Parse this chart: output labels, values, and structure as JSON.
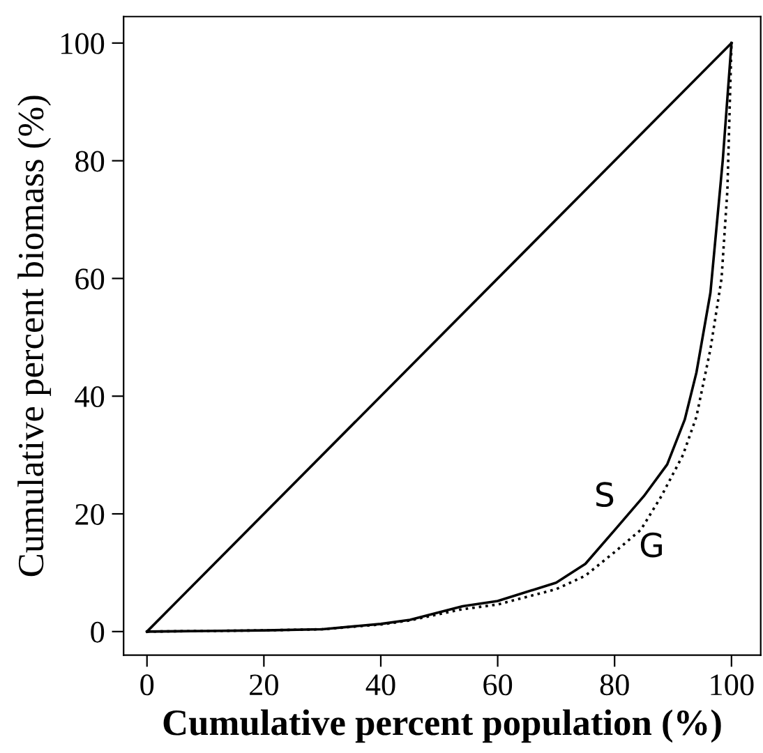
{
  "chart_data": {
    "type": "line",
    "xlabel": "Cumulative percent population (%)",
    "ylabel": "Cumulative percent biomass (%)",
    "xlim": [
      -4,
      105
    ],
    "ylim": [
      -4,
      104.5
    ],
    "xticks": [
      0,
      20,
      40,
      60,
      80,
      100
    ],
    "yticks": [
      0,
      20,
      40,
      60,
      80,
      100
    ],
    "grid": false,
    "legend": false,
    "marker": "none",
    "series": [
      {
        "color": "#000000",
        "line_style": "solid",
        "x": [
          0,
          100
        ],
        "values": [
          0,
          100
        ]
      },
      {
        "color": "#000000",
        "line_style": "solid",
        "x": [
          0,
          10,
          20,
          30,
          40,
          45,
          54,
          60,
          70,
          75,
          79.8,
          85,
          89,
          92,
          94,
          96.4,
          98.5,
          100
        ],
        "values": [
          0,
          0.1,
          0.2,
          0.4,
          1.3,
          2,
          4.3,
          5.2,
          8.3,
          11.5,
          17,
          23,
          28.4,
          36,
          44,
          57.6,
          80,
          100
        ]
      },
      {
        "color": "#000000",
        "line_style": "dotted",
        "x": [
          0,
          10,
          20,
          30,
          40,
          45,
          54,
          60,
          70,
          75,
          80,
          84.5,
          88,
          91.7,
          94,
          96.4,
          98.3,
          99.3,
          100
        ],
        "values": [
          0,
          0.1,
          0.2,
          0.4,
          1.2,
          1.9,
          3.8,
          4.6,
          7.2,
          9.5,
          13.5,
          17.3,
          23,
          30,
          36.5,
          48,
          60,
          75,
          100
        ]
      }
    ],
    "annotations": [
      "S",
      "G"
    ]
  }
}
